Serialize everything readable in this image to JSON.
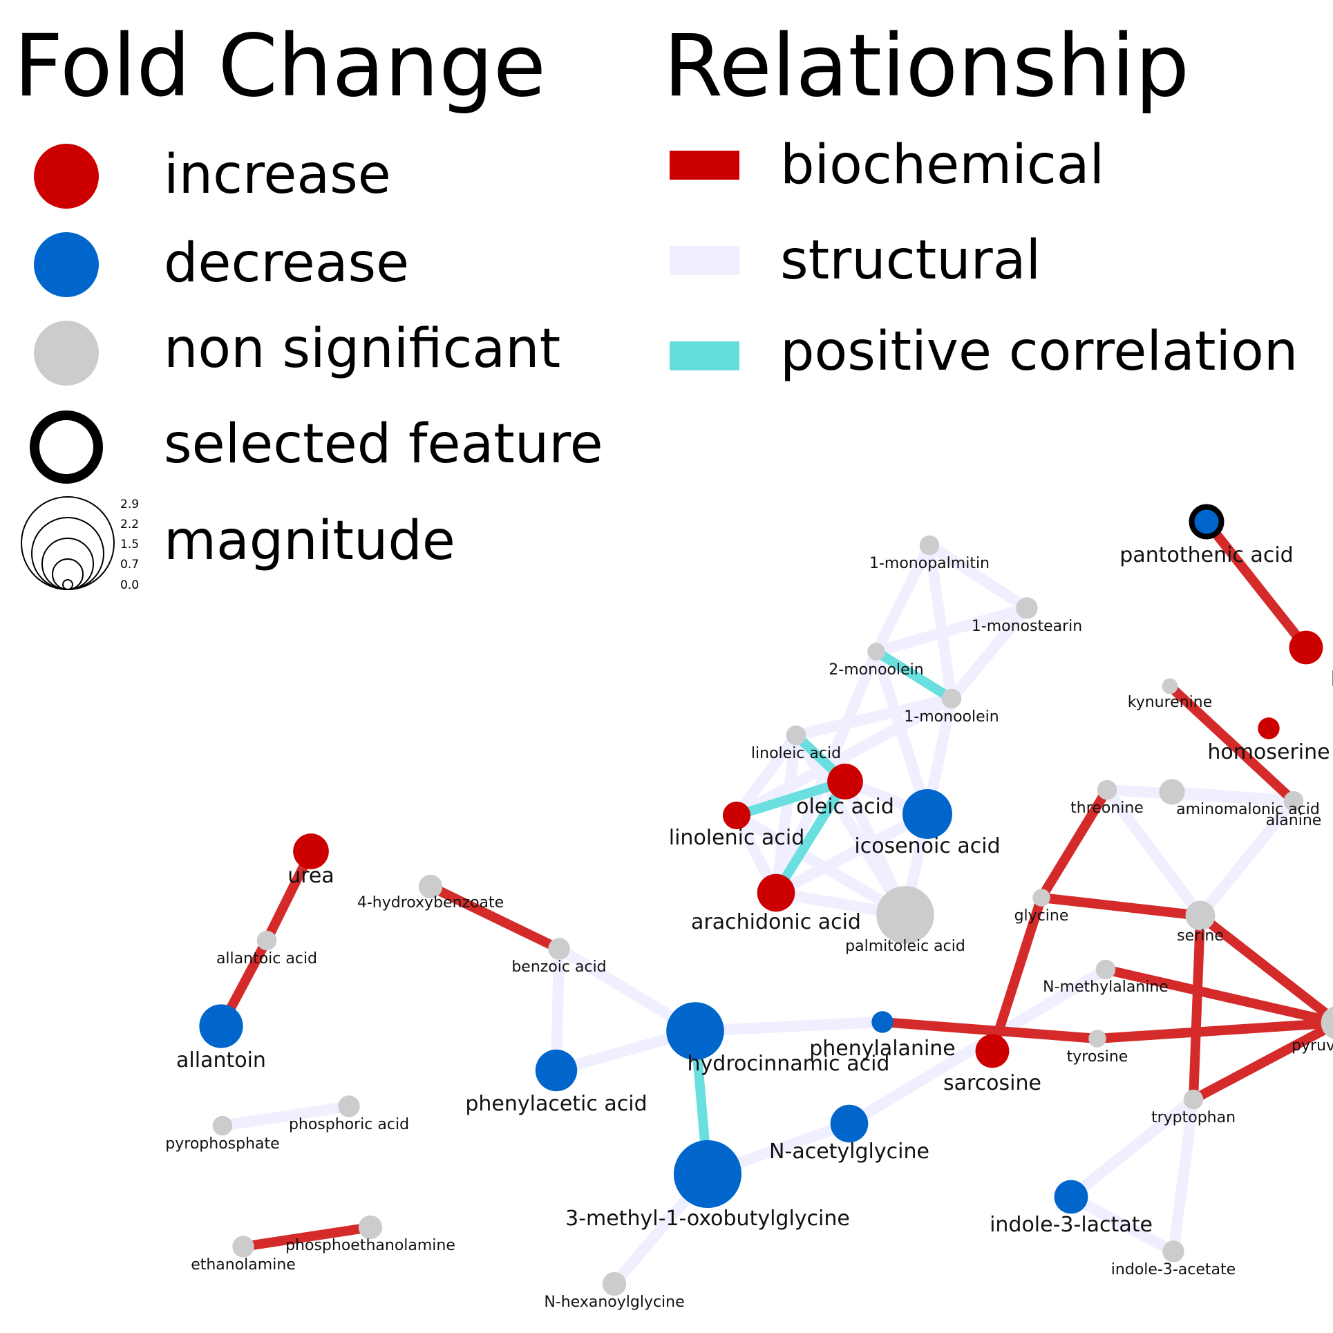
{
  "legend": {
    "fold_change_title": "Fold Change",
    "relationship_title": "Relationship",
    "fold_change_items": [
      {
        "label": "increase",
        "color": "#cc0000"
      },
      {
        "label": "decrease",
        "color": "#0066cc"
      },
      {
        "label": "non significant",
        "color": "#cccccc"
      },
      {
        "label": "selected feature",
        "color": "#000000"
      },
      {
        "label": "magnitude",
        "color": "#000000"
      }
    ],
    "magnitude_ticks": [
      "2.9",
      "2.2",
      "1.5",
      "0.7",
      "0.0"
    ],
    "relationship_items": [
      {
        "label": "biochemical",
        "color": "#cc0000"
      },
      {
        "label": "structural",
        "color": "#eeeeff"
      },
      {
        "label": "positive correlation",
        "color": "#66dddd"
      }
    ]
  },
  "network": {
    "colors": {
      "increase": "#cc0000",
      "decrease": "#0066cc",
      "ns": "#cccccc",
      "biochemical": "#d42a2a",
      "structural": "#eeeeff",
      "correlation": "#6adfdf"
    },
    "nodes": [
      {
        "id": "pantothenic acid",
        "status": "decrease",
        "magnitude": 1.0,
        "selected": true
      },
      {
        "id": "beta-alanine",
        "status": "increase",
        "magnitude": 1.2,
        "clipped": true
      },
      {
        "id": "kynurenine",
        "status": "ns",
        "magnitude": 0.3
      },
      {
        "id": "homoserine",
        "status": "increase",
        "magnitude": 0.6
      },
      {
        "id": "threonine",
        "status": "ns",
        "magnitude": 0.5
      },
      {
        "id": "aminomalonic acid",
        "status": "ns",
        "magnitude": 0.8
      },
      {
        "id": "alanine",
        "status": "ns",
        "magnitude": 0.5
      },
      {
        "id": "glycine",
        "status": "ns",
        "magnitude": 0.4
      },
      {
        "id": "serine",
        "status": "ns",
        "magnitude": 1.0
      },
      {
        "id": "N-methylalanine",
        "status": "ns",
        "magnitude": 0.5
      },
      {
        "id": "tyrosine",
        "status": "ns",
        "magnitude": 0.4
      },
      {
        "id": "pyruvic acid",
        "status": "ns",
        "magnitude": 1.2,
        "clipped": true
      },
      {
        "id": "tryptophan",
        "status": "ns",
        "magnitude": 0.5
      },
      {
        "id": "indole-3-lactate",
        "status": "decrease",
        "magnitude": 1.2
      },
      {
        "id": "indole-3-acetate",
        "status": "ns",
        "magnitude": 0.6
      },
      {
        "id": "sarcosine",
        "status": "increase",
        "magnitude": 1.2
      },
      {
        "id": "phenylalanine",
        "status": "decrease",
        "magnitude": 0.6
      },
      {
        "id": "N-acetylglycine",
        "status": "decrease",
        "magnitude": 1.4
      },
      {
        "id": "3-methyl-1-oxobutylglycine",
        "status": "decrease",
        "magnitude": 2.9
      },
      {
        "id": "N-hexanoylglycine",
        "status": "ns",
        "magnitude": 0.7
      },
      {
        "id": "hydrocinnamic acid",
        "status": "decrease",
        "magnitude": 2.4
      },
      {
        "id": "phenylacetic acid",
        "status": "decrease",
        "magnitude": 1.6
      },
      {
        "id": "benzoic acid",
        "status": "ns",
        "magnitude": 0.6
      },
      {
        "id": "4-hydroxybenzoate",
        "status": "ns",
        "magnitude": 0.7
      },
      {
        "id": "urea",
        "status": "increase",
        "magnitude": 1.3
      },
      {
        "id": "allantoic acid",
        "status": "ns",
        "magnitude": 0.5
      },
      {
        "id": "allantoin",
        "status": "decrease",
        "magnitude": 1.7
      },
      {
        "id": "pyrophosphate",
        "status": "ns",
        "magnitude": 0.5
      },
      {
        "id": "phosphoric acid",
        "status": "ns",
        "magnitude": 0.6
      },
      {
        "id": "ethanolamine",
        "status": "ns",
        "magnitude": 0.6
      },
      {
        "id": "phosphoethanolamine",
        "status": "ns",
        "magnitude": 0.7
      },
      {
        "id": "1-monopalmitin",
        "status": "ns",
        "magnitude": 0.5
      },
      {
        "id": "1-monostearin",
        "status": "ns",
        "magnitude": 0.6
      },
      {
        "id": "2-monoolein",
        "status": "ns",
        "magnitude": 0.4
      },
      {
        "id": "1-monoolein",
        "status": "ns",
        "magnitude": 0.5
      },
      {
        "id": "linoleic acid",
        "status": "ns",
        "magnitude": 0.5
      },
      {
        "id": "oleic acid",
        "status": "increase",
        "magnitude": 1.3
      },
      {
        "id": "linolenic acid",
        "status": "increase",
        "magnitude": 0.9
      },
      {
        "id": "icosenoic acid",
        "status": "decrease",
        "magnitude": 2.0
      },
      {
        "id": "arachidonic acid",
        "status": "increase",
        "magnitude": 1.4
      },
      {
        "id": "palmitoleic acid",
        "status": "ns",
        "magnitude": 2.4
      }
    ],
    "edges": [
      {
        "source": "pantothenic acid",
        "target": "beta-alanine",
        "type": "biochemical"
      },
      {
        "source": "kynurenine",
        "target": "alanine",
        "type": "biochemical"
      },
      {
        "source": "alanine",
        "target": "serine",
        "type": "structural"
      },
      {
        "source": "alanine",
        "target": "threonine",
        "type": "structural"
      },
      {
        "source": "aminomalonic acid",
        "target": "alanine",
        "type": "structural"
      },
      {
        "source": "threonine",
        "target": "serine",
        "type": "structural"
      },
      {
        "source": "threonine",
        "target": "glycine",
        "type": "biochemical"
      },
      {
        "source": "glycine",
        "target": "serine",
        "type": "biochemical"
      },
      {
        "source": "glycine",
        "target": "sarcosine",
        "type": "biochemical"
      },
      {
        "source": "serine",
        "target": "tryptophan",
        "type": "biochemical"
      },
      {
        "source": "serine",
        "target": "pyruvic acid",
        "type": "biochemical"
      },
      {
        "source": "N-methylalanine",
        "target": "pyruvic acid",
        "type": "biochemical"
      },
      {
        "source": "tyrosine",
        "target": "pyruvic acid",
        "type": "biochemical"
      },
      {
        "source": "tryptophan",
        "target": "pyruvic acid",
        "type": "biochemical"
      },
      {
        "source": "phenylalanine",
        "target": "tyrosine",
        "type": "biochemical"
      },
      {
        "source": "tryptophan",
        "target": "indole-3-lactate",
        "type": "structural"
      },
      {
        "source": "tryptophan",
        "target": "indole-3-acetate",
        "type": "structural"
      },
      {
        "source": "indole-3-lactate",
        "target": "indole-3-acetate",
        "type": "structural"
      },
      {
        "source": "N-acetylglycine",
        "target": "N-methylalanine",
        "type": "structural"
      },
      {
        "source": "3-methyl-1-oxobutylglycine",
        "target": "N-acetylglycine",
        "type": "structural"
      },
      {
        "source": "3-methyl-1-oxobutylglycine",
        "target": "N-hexanoylglycine",
        "type": "structural"
      },
      {
        "source": "hydrocinnamic acid",
        "target": "3-methyl-1-oxobutylglycine",
        "type": "correlation"
      },
      {
        "source": "hydrocinnamic acid",
        "target": "phenylalanine",
        "type": "structural"
      },
      {
        "source": "hydrocinnamic acid",
        "target": "phenylacetic acid",
        "type": "structural"
      },
      {
        "source": "hydrocinnamic acid",
        "target": "benzoic acid",
        "type": "structural"
      },
      {
        "source": "benzoic acid",
        "target": "phenylacetic acid",
        "type": "structural"
      },
      {
        "source": "4-hydroxybenzoate",
        "target": "benzoic acid",
        "type": "biochemical"
      },
      {
        "source": "urea",
        "target": "allantoic acid",
        "type": "biochemical"
      },
      {
        "source": "allantoic acid",
        "target": "allantoin",
        "type": "biochemical"
      },
      {
        "source": "pyrophosphate",
        "target": "phosphoric acid",
        "type": "structural"
      },
      {
        "source": "ethanolamine",
        "target": "phosphoethanolamine",
        "type": "biochemical"
      },
      {
        "source": "1-monopalmitin",
        "target": "1-monostearin",
        "type": "structural"
      },
      {
        "source": "1-monopalmitin",
        "target": "2-monoolein",
        "type": "structural"
      },
      {
        "source": "1-monopalmitin",
        "target": "1-monoolein",
        "type": "structural"
      },
      {
        "source": "1-monostearin",
        "target": "2-monoolein",
        "type": "structural"
      },
      {
        "source": "1-monostearin",
        "target": "1-monoolein",
        "type": "structural"
      },
      {
        "source": "2-monoolein",
        "target": "1-monoolein",
        "type": "correlation"
      },
      {
        "source": "2-monoolein",
        "target": "icosenoic acid",
        "type": "structural"
      },
      {
        "source": "1-monoolein",
        "target": "linoleic acid",
        "type": "structural"
      },
      {
        "source": "1-monoolein",
        "target": "icosenoic acid",
        "type": "structural"
      },
      {
        "source": "1-monoolein",
        "target": "linolenic acid",
        "type": "structural"
      },
      {
        "source": "2-monoolein",
        "target": "arachidonic acid",
        "type": "structural"
      },
      {
        "source": "linoleic acid",
        "target": "oleic acid",
        "type": "correlation"
      },
      {
        "source": "linoleic acid",
        "target": "linolenic acid",
        "type": "structural"
      },
      {
        "source": "linoleic acid",
        "target": "arachidonic acid",
        "type": "structural"
      },
      {
        "source": "linoleic acid",
        "target": "palmitoleic acid",
        "type": "structural"
      },
      {
        "source": "oleic acid",
        "target": "linolenic acid",
        "type": "correlation"
      },
      {
        "source": "oleic acid",
        "target": "arachidonic acid",
        "type": "correlation"
      },
      {
        "source": "oleic acid",
        "target": "icosenoic acid",
        "type": "structural"
      },
      {
        "source": "oleic acid",
        "target": "palmitoleic acid",
        "type": "structural"
      },
      {
        "source": "linolenic acid",
        "target": "arachidonic acid",
        "type": "structural"
      },
      {
        "source": "linolenic acid",
        "target": "palmitoleic acid",
        "type": "structural"
      },
      {
        "source": "arachidonic acid",
        "target": "palmitoleic acid",
        "type": "structural"
      },
      {
        "source": "icosenoic acid",
        "target": "palmitoleic acid",
        "type": "structural"
      },
      {
        "source": "arachidonic acid",
        "target": "icosenoic acid",
        "type": "structural"
      }
    ]
  }
}
